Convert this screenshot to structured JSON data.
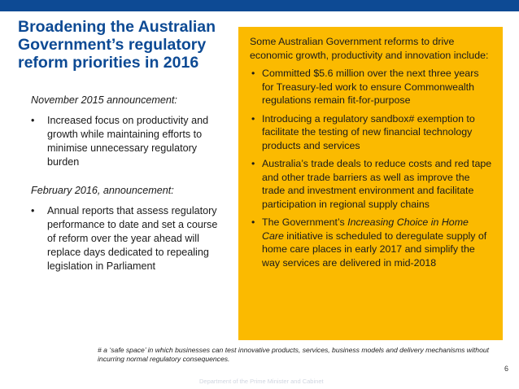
{
  "title": "Broadening the Australian Government’s regulatory reform priorities in 2016",
  "left": {
    "announcement1": "November 2015 announcement:",
    "bullets1": [
      "Increased focus on productivity and growth while maintaining efforts to minimise unnecessary regulatory burden"
    ],
    "announcement2": "February 2016, announcement:",
    "bullets2": [
      "Annual reports that assess regulatory performance to date and set a course of reform over the year ahead will replace days dedicated to repealing legislation in Parliament"
    ]
  },
  "panel": {
    "intro": "Some Australian Government reforms to drive economic growth, productivity and innovation include:",
    "bullets": [
      {
        "pre": "Committed $5.6 million over the next three years for Treasury-led work to ensure Commonwealth regulations remain fit-for-purpose",
        "italic": "",
        "post": ""
      },
      {
        "pre": "Introducing a regulatory sandbox# exemption to facilitate the testing of new financial technology products and services",
        "italic": "",
        "post": ""
      },
      {
        "pre": "Australia’s trade deals to reduce costs and red tape and other trade barriers as well as improve the trade and investment environment and facilitate participation in regional supply chains",
        "italic": "",
        "post": ""
      },
      {
        "pre": "The Government’s ",
        "italic": "Increasing Choice in Home Care",
        "post": " initiative is scheduled to deregulate supply of home care places in early 2017 and simplify the way services are delivered in mid-2018"
      }
    ]
  },
  "footnote": "# a ‘safe space’ in which businesses can test innovative products, services, business models and delivery mechanisms without incurring normal regulatory consequences.",
  "page_number": "6",
  "footer": "Department of the Prime Minister and Cabinet",
  "bullet_glyph": "•",
  "colors": {
    "brand_blue": "#0d4a94",
    "panel_yellow": "#fbba00"
  }
}
